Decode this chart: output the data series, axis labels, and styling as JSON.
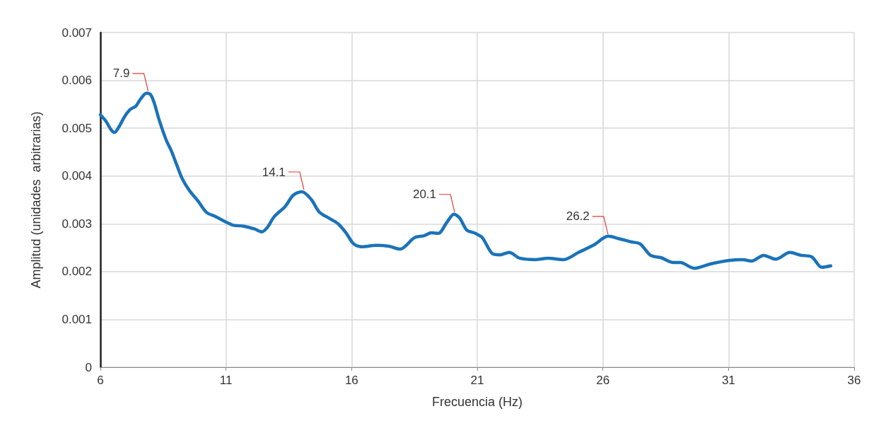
{
  "chart_data": {
    "type": "line",
    "xlabel": "Frecuencia (Hz)",
    "ylabel": "Amplitud (unidades  arbitrarias)",
    "xlim": [
      6,
      36
    ],
    "xticks": [
      6,
      11,
      16,
      21,
      26,
      31,
      36
    ],
    "ylim": [
      0,
      0.007
    ],
    "yticks": [
      0,
      0.001,
      0.002,
      0.003,
      0.004,
      0.005,
      0.006,
      0.007
    ],
    "grid": true,
    "marker": "none",
    "line_style": "solid",
    "series": [
      {
        "color": "#1a73ba",
        "x": [
          6.0,
          6.23,
          6.42,
          6.56,
          6.73,
          6.96,
          7.18,
          7.41,
          7.6,
          7.83,
          8.0,
          8.14,
          8.34,
          8.62,
          8.81,
          9.04,
          9.26,
          9.55,
          9.88,
          10.22,
          10.59,
          10.95,
          11.29,
          11.71,
          12.14,
          12.42,
          12.64,
          12.92,
          13.35,
          13.68,
          14.02,
          14.39,
          14.72,
          15.09,
          15.46,
          15.79,
          16.08,
          16.41,
          16.98,
          17.48,
          17.93,
          18.5,
          18.89,
          19.17,
          19.45,
          19.79,
          20.07,
          20.3,
          20.58,
          20.92,
          21.2,
          21.59,
          21.9,
          22.27,
          22.69,
          23.31,
          23.82,
          24.43,
          25.03,
          25.65,
          26.21,
          26.63,
          27.14,
          27.48,
          27.9,
          28.32,
          28.8,
          29.08,
          29.64,
          30.29,
          30.99,
          31.56,
          31.92,
          32.4,
          32.88,
          33.44,
          33.89,
          34.31,
          34.71,
          35.07
        ],
        "values": [
          0.00528,
          0.00514,
          0.00497,
          0.00491,
          0.00502,
          0.00524,
          0.00539,
          0.00546,
          0.00561,
          0.00573,
          0.0057,
          0.00553,
          0.00517,
          0.00475,
          0.00454,
          0.00423,
          0.00394,
          0.00369,
          0.00348,
          0.00324,
          0.00315,
          0.00305,
          0.00297,
          0.00295,
          0.00289,
          0.00283,
          0.00292,
          0.00315,
          0.00336,
          0.0036,
          0.00367,
          0.00351,
          0.00324,
          0.00312,
          0.003,
          0.0028,
          0.00258,
          0.00252,
          0.00255,
          0.00253,
          0.00247,
          0.00271,
          0.00275,
          0.00281,
          0.0028,
          0.00303,
          0.0032,
          0.00312,
          0.00287,
          0.0028,
          0.00271,
          0.00238,
          0.00235,
          0.0024,
          0.00228,
          0.00225,
          0.00228,
          0.00225,
          0.0024,
          0.00256,
          0.00274,
          0.00269,
          0.00262,
          0.00258,
          0.00234,
          0.00229,
          0.00219,
          0.00219,
          0.00207,
          0.00216,
          0.00223,
          0.00225,
          0.00222,
          0.00234,
          0.00226,
          0.0024,
          0.00234,
          0.00231,
          0.00209,
          0.00212
        ]
      }
    ],
    "annotations": [
      {
        "text": "7.9",
        "x": 7.9,
        "y": 0.00573
      },
      {
        "text": "14.1",
        "x": 14.1,
        "y": 0.00367
      },
      {
        "text": "20.1",
        "x": 20.1,
        "y": 0.0032
      },
      {
        "text": "26.2",
        "x": 26.2,
        "y": 0.00274
      }
    ]
  }
}
